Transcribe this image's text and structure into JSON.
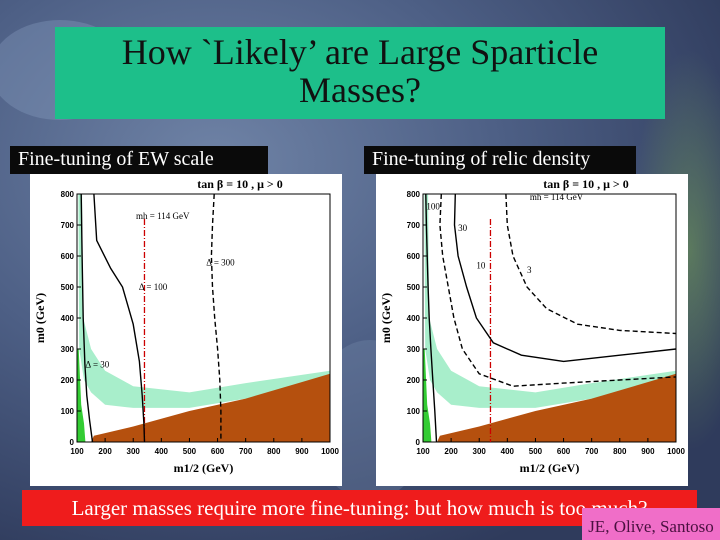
{
  "slide": {
    "title_line1": "How `Likely’ are Large Sparticle",
    "title_line2": "Masses?",
    "left_label": "Fine-tuning of EW scale",
    "right_label": "Fine-tuning of relic density",
    "conclusion": "Larger masses require more fine-tuning: but how much is too much?",
    "credit": "JE, Olive, Santoso"
  },
  "colors": {
    "title_bg": "#1dbf8a",
    "conclusion_bg": "#ef1c1c",
    "credit_bg": "#f06ec8",
    "excluded_region": "#b5500e",
    "wmap_band": "#a8eecb",
    "bsg_region": "#33cc33",
    "higgs_line": "#cc0000"
  },
  "chart_data": [
    {
      "type": "line",
      "panel": "left",
      "header": "tan β = 10 , μ > 0",
      "xlabel": "m1/2 (GeV)",
      "ylabel": "m0 (GeV)",
      "xlim": [
        100,
        1000
      ],
      "ylim": [
        0,
        800
      ],
      "xticks": [
        100,
        200,
        300,
        400,
        500,
        600,
        700,
        800,
        900,
        1000
      ],
      "yticks": [
        0,
        100,
        200,
        300,
        400,
        500,
        600,
        700,
        800
      ],
      "annotations": [
        "mh = 114 GeV",
        "Δ = 300",
        "Δ = 100",
        "Δ = 30"
      ],
      "contours": [
        {
          "label": "Δ = 30",
          "style": "solid",
          "points": [
            [
              115,
              800
            ],
            [
              118,
              600
            ],
            [
              122,
              400
            ],
            [
              128,
              250
            ],
            [
              135,
              150
            ],
            [
              145,
              70
            ],
            [
              155,
              0
            ]
          ]
        },
        {
          "label": "Δ = 100",
          "style": "solid",
          "points": [
            [
              160,
              800
            ],
            [
              170,
              650
            ],
            [
              220,
              560
            ],
            [
              262,
              500
            ],
            [
              300,
              380
            ],
            [
              322,
              260
            ],
            [
              332,
              150
            ],
            [
              338,
              60
            ],
            [
              340,
              0
            ]
          ]
        },
        {
          "label": "Δ = 300",
          "style": "dashed",
          "points": [
            [
              588,
              800
            ],
            [
              582,
              700
            ],
            [
              578,
              600
            ],
            [
              582,
              500
            ],
            [
              590,
              400
            ],
            [
              600,
              300
            ],
            [
              608,
              200
            ],
            [
              612,
              100
            ],
            [
              612,
              0
            ]
          ]
        }
      ],
      "higgs_mass_line": {
        "label": "mh = 114 GeV",
        "m_half": 340
      }
    },
    {
      "type": "line",
      "panel": "right",
      "header": "tan β = 10 , μ > 0",
      "xlabel": "m1/2 (GeV)",
      "ylabel": "m0 (GeV)",
      "xlim": [
        100,
        1000
      ],
      "ylim": [
        0,
        800
      ],
      "xticks": [
        100,
        200,
        300,
        400,
        500,
        600,
        700,
        800,
        900,
        1000
      ],
      "yticks": [
        0,
        100,
        200,
        300,
        400,
        500,
        600,
        700,
        800
      ],
      "annotations": [
        "mh = 114 GeV",
        "100",
        "30",
        "10",
        "3"
      ],
      "contours": [
        {
          "label": "100",
          "style": "solid",
          "points": [
            [
              110,
              800
            ],
            [
              112,
              700
            ],
            [
              115,
              600
            ],
            [
              118,
              500
            ],
            [
              122,
              400
            ],
            [
              128,
              300
            ],
            [
              135,
              200
            ],
            [
              142,
              100
            ],
            [
              148,
              0
            ]
          ]
        },
        {
          "label": "30",
          "style": "dashed",
          "points": [
            [
              165,
              800
            ],
            [
              160,
              700
            ],
            [
              170,
              600
            ],
            [
              190,
              500
            ],
            [
              210,
              400
            ],
            [
              240,
              300
            ],
            [
              300,
              220
            ],
            [
              420,
              180
            ],
            [
              600,
              190
            ],
            [
              800,
              200
            ],
            [
              1000,
              210
            ]
          ]
        },
        {
          "label": "10",
          "style": "solid",
          "points": [
            [
              215,
              800
            ],
            [
              212,
              700
            ],
            [
              225,
              600
            ],
            [
              255,
              500
            ],
            [
              290,
              400
            ],
            [
              350,
              320
            ],
            [
              450,
              280
            ],
            [
              600,
              260
            ],
            [
              800,
              280
            ],
            [
              1000,
              300
            ]
          ]
        },
        {
          "label": "3",
          "style": "dashed",
          "points": [
            [
              395,
              800
            ],
            [
              400,
              700
            ],
            [
              420,
              600
            ],
            [
              470,
              500
            ],
            [
              540,
              430
            ],
            [
              650,
              380
            ],
            [
              800,
              360
            ],
            [
              1000,
              350
            ]
          ]
        }
      ],
      "higgs_mass_line": {
        "label": "mh = 114 GeV",
        "m_half": 340
      }
    }
  ]
}
